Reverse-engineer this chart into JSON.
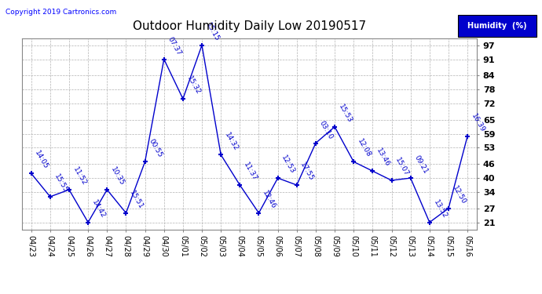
{
  "title": "Outdoor Humidity Daily Low 20190517",
  "copyright": "Copyright 2019 Cartronics.com",
  "legend_label": "Humidity  (%)",
  "x_labels": [
    "04/23",
    "04/24",
    "04/25",
    "04/26",
    "04/27",
    "04/28",
    "04/29",
    "04/30",
    "05/01",
    "05/02",
    "05/03",
    "05/04",
    "05/05",
    "05/06",
    "05/07",
    "05/08",
    "05/09",
    "05/10",
    "05/11",
    "05/12",
    "05/13",
    "05/14",
    "05/15",
    "05/16"
  ],
  "y_values": [
    42,
    32,
    35,
    21,
    35,
    25,
    47,
    91,
    74,
    97,
    50,
    37,
    25,
    40,
    37,
    55,
    62,
    47,
    43,
    39,
    40,
    21,
    27,
    58
  ],
  "time_labels": [
    "14:05",
    "15:55",
    "11:52",
    "14:42",
    "10:35",
    "15:51",
    "00:55",
    "07:37",
    "15:32",
    "15:15",
    "14:32",
    "11:37",
    "12:46",
    "12:53",
    "17:55",
    "03:10",
    "15:53",
    "12:08",
    "13:46",
    "15:07",
    "09:21",
    "13:52",
    "12:50",
    "16:39"
  ],
  "line_color": "#0000cc",
  "marker_color": "#0000cc",
  "background_color": "#ffffff",
  "grid_color": "#aaaaaa",
  "title_fontsize": 11,
  "tick_fontsize": 7,
  "annotation_fontsize": 6.5,
  "y_ticks": [
    21,
    27,
    34,
    40,
    46,
    53,
    59,
    65,
    72,
    78,
    84,
    91,
    97
  ],
  "ylim": [
    18,
    100
  ]
}
